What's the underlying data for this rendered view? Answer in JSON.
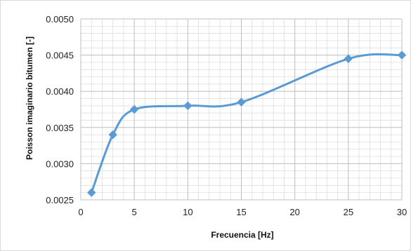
{
  "chart_data": {
    "type": "line",
    "title": "",
    "xlabel": "Frecuencia [Hz]",
    "ylabel": "Poisson imaginario bitumen [-]",
    "x": [
      1,
      3,
      5,
      10,
      15,
      25,
      30
    ],
    "series": [
      {
        "values": [
          0.0026,
          0.0034,
          0.00375,
          0.0038,
          0.00385,
          0.00445,
          0.0045
        ]
      }
    ],
    "xlim": [
      0,
      30
    ],
    "ylim": [
      0.0025,
      0.005
    ],
    "xticks": [
      "0",
      "5",
      "10",
      "15",
      "20",
      "25",
      "30"
    ],
    "yticks": [
      "0.0025",
      "0.0030",
      "0.0035",
      "0.0040",
      "0.0045",
      "0.0050"
    ],
    "grid": true,
    "minor_grid": true,
    "legend": "none",
    "smoothed": true,
    "marker": "diamond",
    "colors": {
      "series": "#5b9bd5",
      "grid_major": "#bfbfbf",
      "grid_minor": "#d9d9d9",
      "border": "#d9d9d9"
    }
  }
}
